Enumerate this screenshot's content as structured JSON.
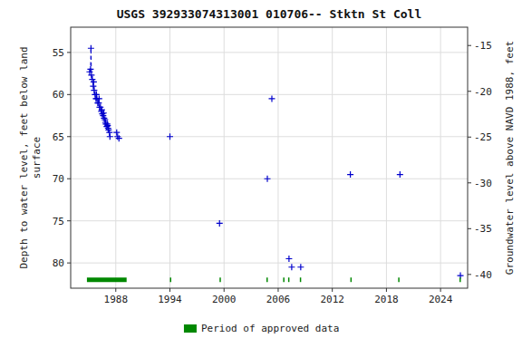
{
  "chart_data": {
    "type": "scatter",
    "title": "USGS 392933074313001 010706-- Stktn St Coll",
    "ylabel": "Depth to water level, feet below land\nsurface",
    "y2label": "Groundwater level above NAVD 1988, feet",
    "xlim": [
      1983,
      2027
    ],
    "xticks": [
      1988,
      1994,
      2000,
      2006,
      2012,
      2018,
      2024
    ],
    "ylim": [
      83,
      52
    ],
    "yticks": [
      55,
      60,
      65,
      70,
      75,
      80
    ],
    "y2lim": [
      -41.5,
      -13
    ],
    "y2ticks": [
      -15,
      -20,
      -25,
      -30,
      -35,
      -40
    ],
    "grid": true,
    "legend": "bottom",
    "series": [
      {
        "type": "line",
        "line_style": "dashed",
        "color": "#0000cc",
        "x": [
          1985.1,
          1985.2,
          1985.25,
          1985.3,
          1985.4,
          1985.5,
          1985.55,
          1985.6,
          1985.7,
          1985.8,
          1985.85,
          1985.9,
          1986.0,
          1986.1,
          1986.15,
          1986.2,
          1986.3,
          1986.4,
          1986.45,
          1986.5,
          1986.6,
          1986.65,
          1986.7,
          1986.8,
          1986.85,
          1986.9,
          1987.0,
          1987.05,
          1987.1,
          1987.15,
          1987.2,
          1987.3,
          1987.35
        ],
        "values": [
          57.3,
          57.0,
          54.5,
          57.7,
          58.2,
          59.0,
          58.5,
          59.5,
          60.0,
          60.5,
          60.0,
          60.5,
          61.0,
          61.0,
          60.5,
          61.5,
          61.5,
          62.0,
          61.8,
          62.3,
          62.5,
          62.2,
          62.8,
          63.0,
          63.3,
          63.5,
          63.8,
          63.5,
          63.7,
          64.0,
          64.2,
          64.5,
          65.0
        ]
      },
      {
        "type": "scatter",
        "marker": "plus",
        "color": "#0000cc",
        "x": [
          1985.1,
          1985.2,
          1985.25,
          1985.3,
          1985.4,
          1985.5,
          1985.55,
          1985.6,
          1985.7,
          1985.8,
          1985.85,
          1985.9,
          1986.0,
          1986.1,
          1986.15,
          1986.2,
          1986.3,
          1986.4,
          1986.45,
          1986.5,
          1986.6,
          1986.65,
          1986.7,
          1986.8,
          1986.85,
          1986.9,
          1987.0,
          1987.05,
          1987.1,
          1987.15,
          1987.2,
          1987.3,
          1987.35,
          1988.1,
          1988.2,
          1988.35,
          1994.0,
          1999.5,
          2004.8,
          2005.3,
          2007.2,
          2007.5,
          2008.5,
          2014.0,
          2019.5,
          2026.2
        ],
        "values": [
          57.3,
          57.0,
          54.5,
          57.7,
          58.2,
          59.0,
          58.5,
          59.5,
          60.0,
          60.5,
          60.0,
          60.5,
          61.0,
          61.0,
          60.5,
          61.5,
          61.5,
          62.0,
          61.8,
          62.3,
          62.5,
          62.2,
          62.8,
          63.0,
          63.3,
          63.5,
          63.8,
          63.5,
          63.7,
          64.0,
          64.2,
          64.5,
          65.0,
          64.5,
          65.0,
          65.2,
          65.0,
          75.3,
          70.0,
          60.5,
          79.5,
          80.5,
          80.5,
          69.5,
          69.5,
          81.5
        ]
      },
      {
        "type": "segments",
        "name": "Period of approved data",
        "color": "#008800",
        "y": 82.0,
        "segments": [
          [
            1984.8,
            1989.2
          ],
          [
            1994.0,
            1994.15
          ],
          [
            1999.5,
            1999.65
          ],
          [
            2004.7,
            2004.85
          ],
          [
            2006.55,
            2006.7
          ],
          [
            2007.1,
            2007.25
          ],
          [
            2008.4,
            2008.55
          ],
          [
            2014.0,
            2014.15
          ],
          [
            2019.3,
            2019.45
          ],
          [
            2026.1,
            2026.25
          ]
        ]
      }
    ]
  }
}
